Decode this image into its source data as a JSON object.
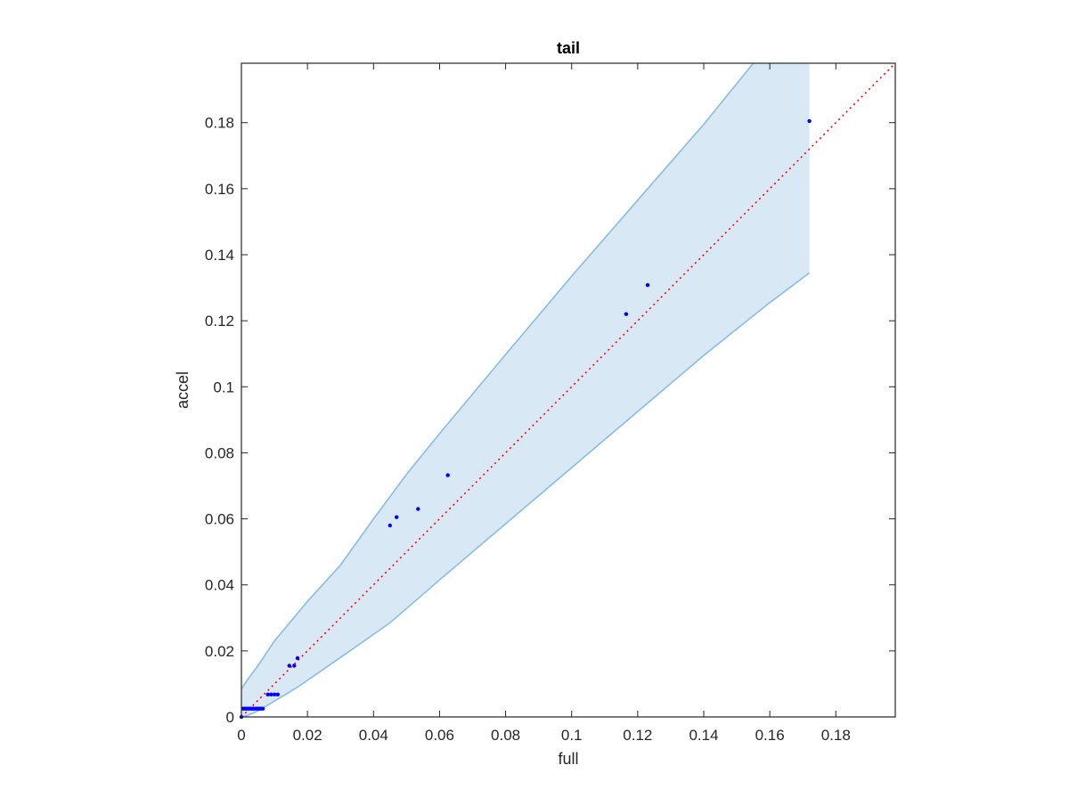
{
  "chart_data": {
    "type": "scatter",
    "title": "tail",
    "xlabel": "full",
    "ylabel": "accel",
    "xlim": [
      0,
      0.198
    ],
    "ylim": [
      0,
      0.198
    ],
    "xticks": [
      0,
      0.02,
      0.04,
      0.06,
      0.08,
      0.1,
      0.12,
      0.14,
      0.16,
      0.18
    ],
    "yticks": [
      0,
      0.02,
      0.04,
      0.06,
      0.08,
      0.1,
      0.12,
      0.14,
      0.16,
      0.18
    ],
    "xtick_labels": [
      "0",
      "0.02",
      "0.04",
      "0.06",
      "0.08",
      "0.1",
      "0.12",
      "0.14",
      "0.16",
      "0.18"
    ],
    "ytick_labels": [
      "0",
      "0.02",
      "0.04",
      "0.06",
      "0.08",
      "0.1",
      "0.12",
      "0.14",
      "0.16",
      "0.18"
    ],
    "grid": false,
    "box": true,
    "colors": {
      "points": "#0000ff",
      "reference_line": "#ff0000",
      "band_fill": "#d9e8f5",
      "band_edge": "#88bde0",
      "axes": "#262626"
    },
    "points": [
      {
        "x": 0,
        "y": 0
      },
      {
        "x": 0.0005,
        "y": 0.0025
      },
      {
        "x": 0.001,
        "y": 0.0025
      },
      {
        "x": 0.0015,
        "y": 0.0025
      },
      {
        "x": 0.002,
        "y": 0.0025
      },
      {
        "x": 0.0025,
        "y": 0.0025
      },
      {
        "x": 0.003,
        "y": 0.0025
      },
      {
        "x": 0.0035,
        "y": 0.0025
      },
      {
        "x": 0.004,
        "y": 0.0025
      },
      {
        "x": 0.0045,
        "y": 0.0025
      },
      {
        "x": 0.005,
        "y": 0.0025
      },
      {
        "x": 0.0055,
        "y": 0.0025
      },
      {
        "x": 0.006,
        "y": 0.0025
      },
      {
        "x": 0.0065,
        "y": 0.0025
      },
      {
        "x": 0.008,
        "y": 0.0068
      },
      {
        "x": 0.009,
        "y": 0.0068
      },
      {
        "x": 0.01,
        "y": 0.0068
      },
      {
        "x": 0.011,
        "y": 0.0068
      },
      {
        "x": 0.0145,
        "y": 0.0155
      },
      {
        "x": 0.016,
        "y": 0.0155
      },
      {
        "x": 0.017,
        "y": 0.0178
      },
      {
        "x": 0.045,
        "y": 0.058
      },
      {
        "x": 0.047,
        "y": 0.0605
      },
      {
        "x": 0.0535,
        "y": 0.063
      },
      {
        "x": 0.0625,
        "y": 0.0732
      },
      {
        "x": 0.1165,
        "y": 0.122
      },
      {
        "x": 0.123,
        "y": 0.1308
      },
      {
        "x": 0.172,
        "y": 0.1805
      }
    ],
    "reference_line": {
      "x": [
        0,
        0.198
      ],
      "y": [
        0,
        0.198
      ],
      "style": "dotted"
    },
    "band": {
      "upper": [
        {
          "x": 0,
          "y": 0.0085
        },
        {
          "x": 0.002,
          "y": 0.0115
        },
        {
          "x": 0.005,
          "y": 0.0155
        },
        {
          "x": 0.01,
          "y": 0.023
        },
        {
          "x": 0.02,
          "y": 0.035
        },
        {
          "x": 0.03,
          "y": 0.046
        },
        {
          "x": 0.04,
          "y": 0.06
        },
        {
          "x": 0.05,
          "y": 0.0735
        },
        {
          "x": 0.06,
          "y": 0.0858
        },
        {
          "x": 0.08,
          "y": 0.1098
        },
        {
          "x": 0.1,
          "y": 0.1335
        },
        {
          "x": 0.12,
          "y": 0.1565
        },
        {
          "x": 0.14,
          "y": 0.1795
        },
        {
          "x": 0.155,
          "y": 0.198
        },
        {
          "x": 0.172,
          "y": 0.198
        }
      ],
      "lower": [
        {
          "x": 0,
          "y": 0
        },
        {
          "x": 0.002,
          "y": 0.0005
        },
        {
          "x": 0.005,
          "y": 0.0018
        },
        {
          "x": 0.01,
          "y": 0.0048
        },
        {
          "x": 0.017,
          "y": 0.009
        },
        {
          "x": 0.03,
          "y": 0.018
        },
        {
          "x": 0.045,
          "y": 0.0285
        },
        {
          "x": 0.06,
          "y": 0.0415
        },
        {
          "x": 0.08,
          "y": 0.0585
        },
        {
          "x": 0.1,
          "y": 0.0755
        },
        {
          "x": 0.12,
          "y": 0.0925
        },
        {
          "x": 0.14,
          "y": 0.1095
        },
        {
          "x": 0.16,
          "y": 0.1255
        },
        {
          "x": 0.172,
          "y": 0.1345
        }
      ]
    }
  }
}
